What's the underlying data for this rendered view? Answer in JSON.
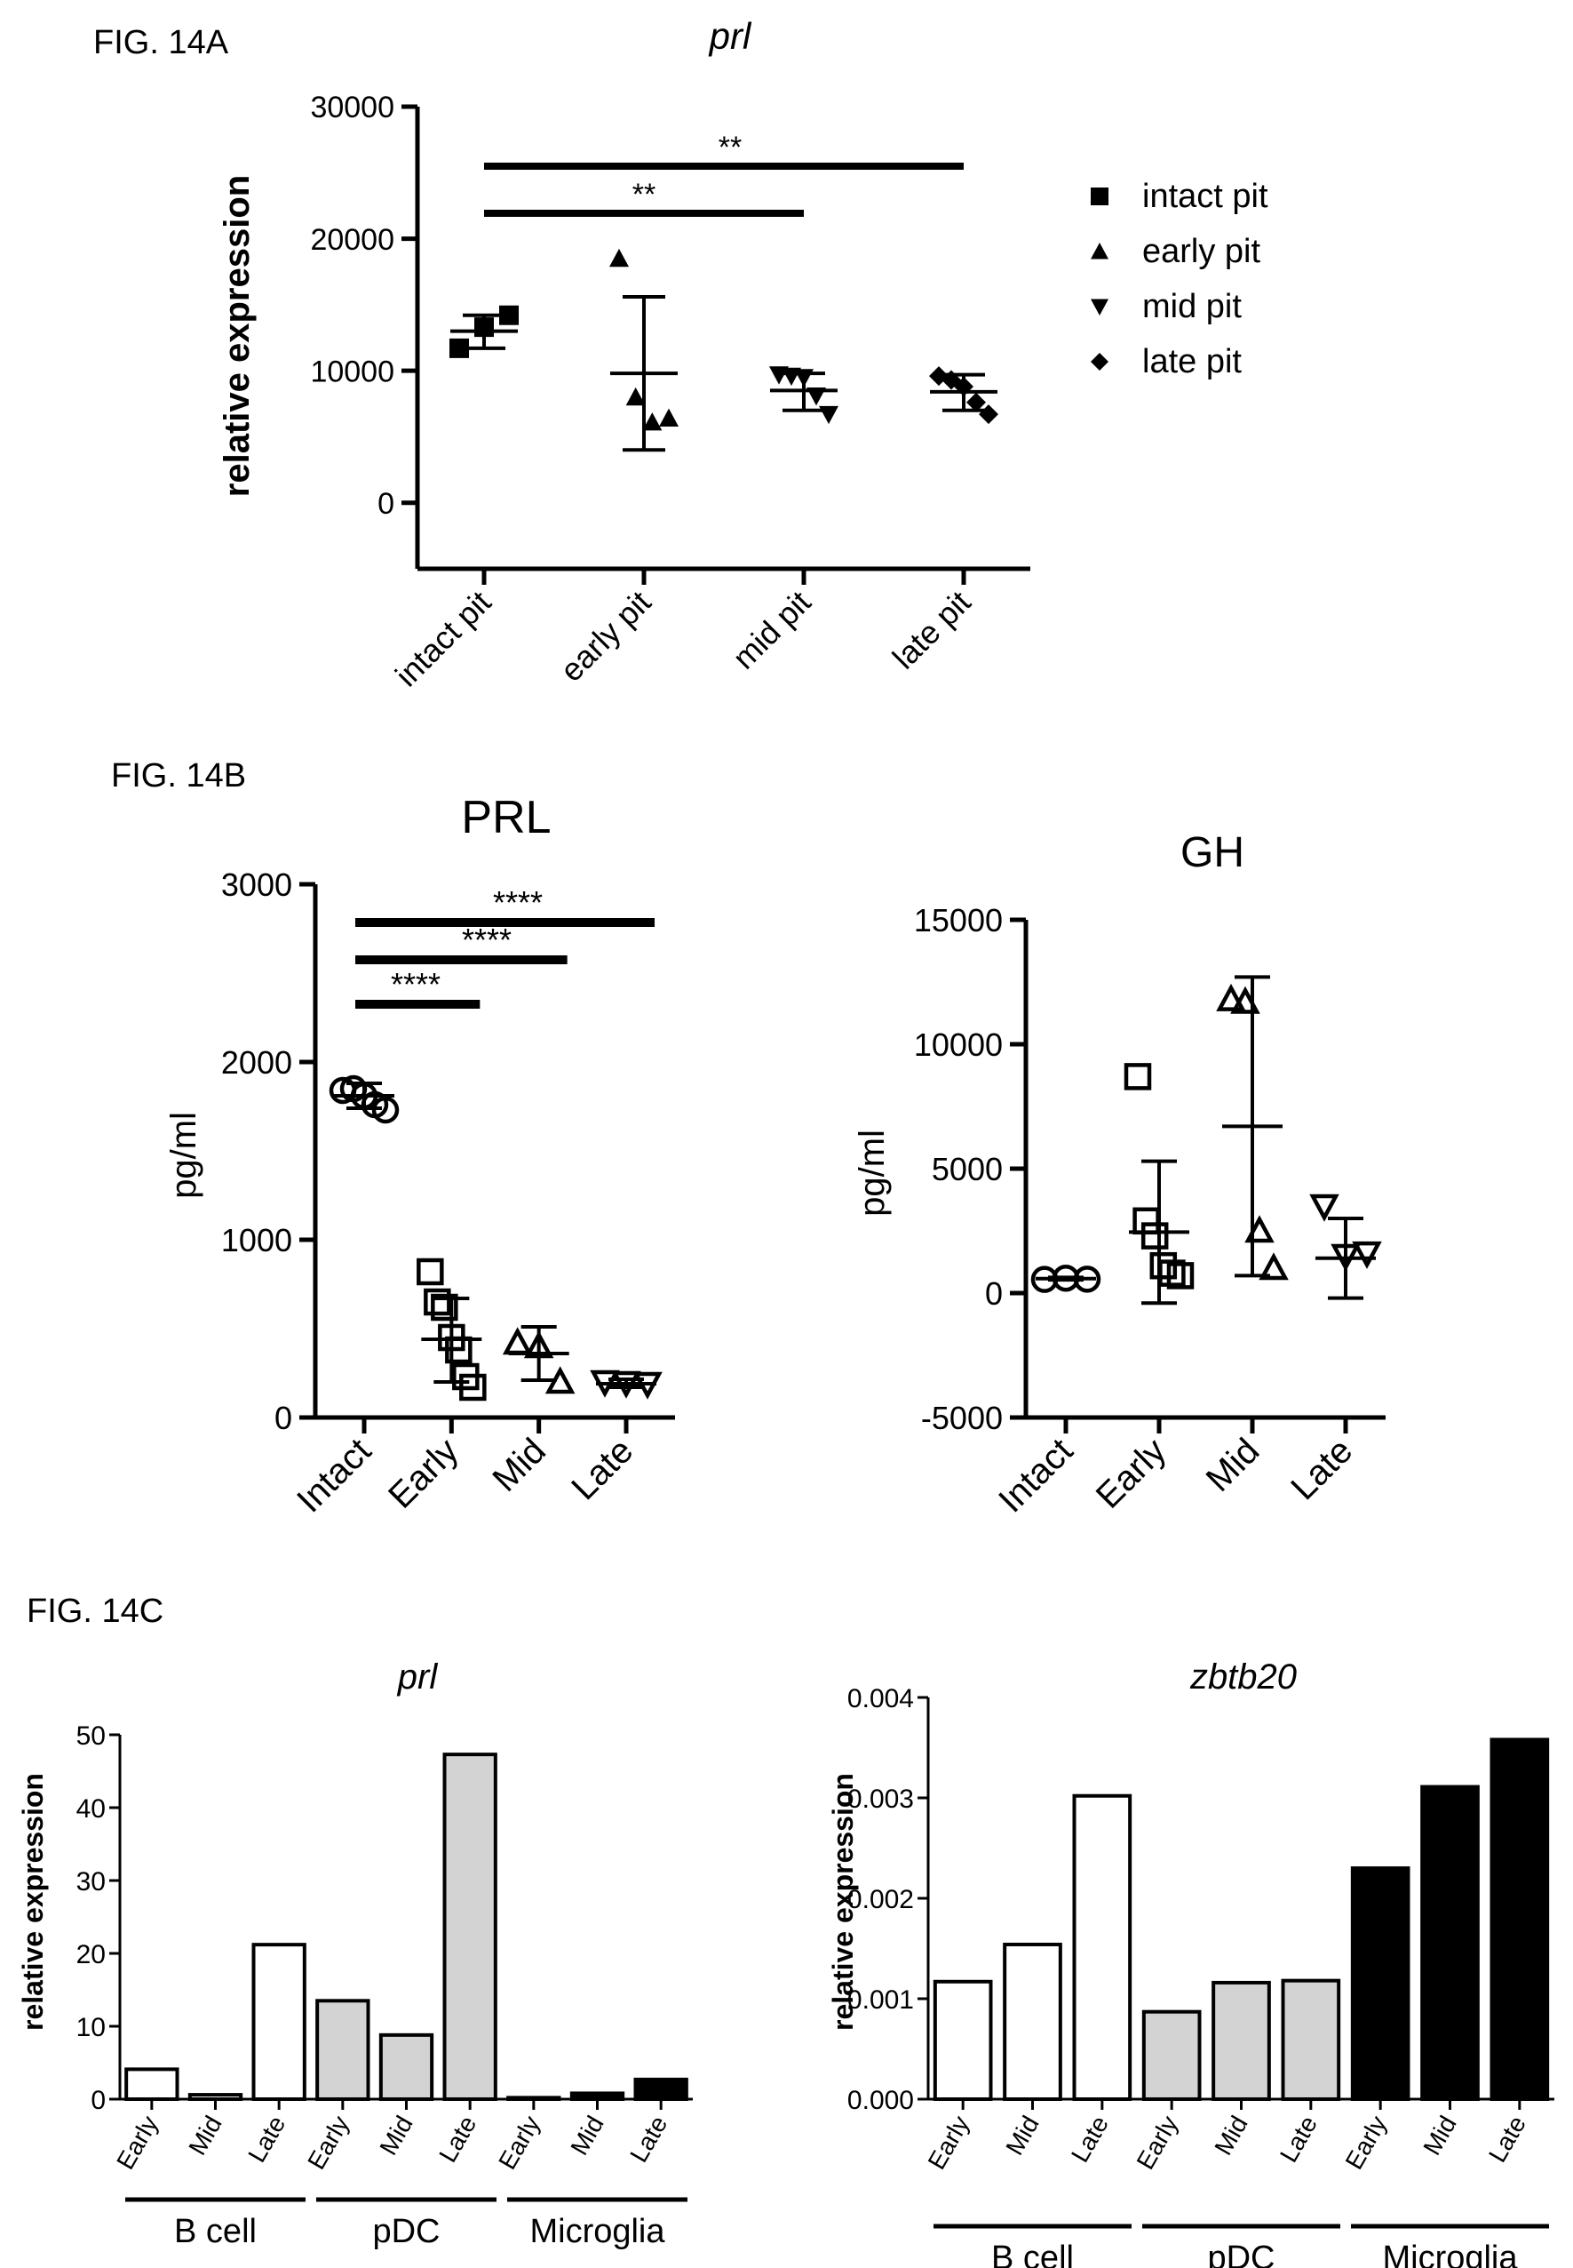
{
  "figure_labels": {
    "a": "FIG. 14A",
    "b": "FIG. 14B",
    "c": "FIG. 14C"
  },
  "chart_data": [
    {
      "id": "fig14a",
      "type": "scatter",
      "title": "prl",
      "ylabel": "relative expression",
      "ylim": [
        -5000,
        30000
      ],
      "yticks": [
        "0",
        "10000",
        "20000",
        "30000"
      ],
      "categories": [
        "intact pit",
        "early pit",
        "mid pit",
        "late pit"
      ],
      "legend": {
        "position": "right",
        "entries": [
          {
            "label": "intact pit",
            "marker": "square"
          },
          {
            "label": "early pit",
            "marker": "triangle-up"
          },
          {
            "label": "mid pit",
            "marker": "triangle-down"
          },
          {
            "label": "late pit",
            "marker": "diamond"
          }
        ]
      },
      "series": [
        {
          "name": "intact pit",
          "marker": "square",
          "points": [
            11700,
            13300,
            14200
          ],
          "mean": 13000,
          "sd_low": 11700,
          "sd_high": 14200
        },
        {
          "name": "early pit",
          "marker": "triangle-up",
          "points": [
            18500,
            8000,
            6100,
            6400
          ],
          "mean": 9800,
          "sd_low": 4000,
          "sd_high": 15600
        },
        {
          "name": "mid pit",
          "marker": "triangle-down",
          "points": [
            9700,
            9600,
            9500,
            8100,
            6700
          ],
          "mean": 8500,
          "sd_low": 7000,
          "sd_high": 9800
        },
        {
          "name": "late pit",
          "marker": "diamond",
          "points": [
            9600,
            9300,
            8800,
            7600,
            6700
          ],
          "mean": 8400,
          "sd_low": 7000,
          "sd_high": 9700
        }
      ],
      "significance": [
        {
          "from": 0,
          "to": 2,
          "label": "**"
        },
        {
          "from": 0,
          "to": 3,
          "label": "**"
        }
      ]
    },
    {
      "id": "fig14b-prl",
      "type": "scatter",
      "title": "PRL",
      "ylabel": "pg/ml",
      "ylim": [
        0,
        3000
      ],
      "yticks": [
        "0",
        "1000",
        "2000",
        "3000"
      ],
      "categories": [
        "Intact",
        "Early",
        "Mid",
        "Late"
      ],
      "series": [
        {
          "name": "Intact",
          "marker": "circle-open",
          "points": [
            1840,
            1850,
            1810,
            1760,
            1730
          ],
          "mean": 1810,
          "sd_low": 1740,
          "sd_high": 1880
        },
        {
          "name": "Early",
          "marker": "square-open",
          "points": [
            820,
            650,
            620,
            450,
            380,
            230,
            170
          ],
          "mean": 440,
          "sd_low": 200,
          "sd_high": 670
        },
        {
          "name": "Mid",
          "marker": "triangle-up-open",
          "points": [
            420,
            400,
            200
          ],
          "mean": 360,
          "sd_low": 210,
          "sd_high": 510
        },
        {
          "name": "Late",
          "marker": "triangle-down-open",
          "points": [
            200,
            195,
            190
          ],
          "mean": 190,
          "sd_low": 170,
          "sd_high": 215
        }
      ],
      "significance": [
        {
          "from": 0,
          "to": 1,
          "label": "****"
        },
        {
          "from": 0,
          "to": 2,
          "label": "****"
        },
        {
          "from": 0,
          "to": 3,
          "label": "****"
        }
      ]
    },
    {
      "id": "fig14b-gh",
      "type": "scatter",
      "title": "GH",
      "ylabel": "pg/ml",
      "ylim": [
        -5000,
        15000
      ],
      "yticks": [
        "-5000",
        "0",
        "5000",
        "10000",
        "15000"
      ],
      "categories": [
        "Intact",
        "Early",
        "Mid",
        "Late"
      ],
      "series": [
        {
          "name": "Intact",
          "marker": "circle-open",
          "points": [
            550,
            600,
            560
          ],
          "mean": 580,
          "sd_low": 530,
          "sd_high": 630
        },
        {
          "name": "Early",
          "marker": "square-open",
          "points": [
            8700,
            2900,
            2300,
            1100,
            800,
            700
          ],
          "mean": 2450,
          "sd_low": -400,
          "sd_high": 5300
        },
        {
          "name": "Mid",
          "marker": "triangle-up-open",
          "points": [
            11800,
            11700,
            2500,
            1000
          ],
          "mean": 6700,
          "sd_low": 700,
          "sd_high": 12700
        },
        {
          "name": "Late",
          "marker": "triangle-down-open",
          "points": [
            3500,
            1500,
            1600
          ],
          "mean": 1400,
          "sd_low": -200,
          "sd_high": 3000
        }
      ]
    },
    {
      "id": "fig14c-prl",
      "type": "bar",
      "title": "prl",
      "ylabel": "relative expression",
      "ylim": [
        0,
        50
      ],
      "yticks": [
        "0",
        "10",
        "20",
        "30",
        "40",
        "50"
      ],
      "categories": [
        "Early",
        "Mid",
        "Late",
        "Early",
        "Mid",
        "Late",
        "Early",
        "Mid",
        "Late"
      ],
      "groups": [
        {
          "label": "B cell",
          "fill": "#ffffff"
        },
        {
          "label": "pDC",
          "fill": "#d3d3d3"
        },
        {
          "label": "Microglia",
          "fill": "#000000"
        }
      ],
      "values": [
        4.1,
        0.6,
        21.2,
        13.5,
        8.8,
        47.3,
        0.2,
        0.8,
        2.7
      ]
    },
    {
      "id": "fig14c-zbtb20",
      "type": "bar",
      "title": "zbtb20",
      "ylabel": "relative expression",
      "ylim": [
        0,
        0.004
      ],
      "yticks": [
        "0.000",
        "0.001",
        "0.002",
        "0.003",
        "0.004"
      ],
      "categories": [
        "Early",
        "Mid",
        "Late",
        "Early",
        "Mid",
        "Late",
        "Early",
        "Mid",
        "Late"
      ],
      "groups": [
        {
          "label": "B cell",
          "fill": "#ffffff"
        },
        {
          "label": "pDC",
          "fill": "#d3d3d3"
        },
        {
          "label": "Microglia",
          "fill": "#000000"
        }
      ],
      "values": [
        0.00117,
        0.00154,
        0.00302,
        0.00087,
        0.00116,
        0.00118,
        0.0023,
        0.00311,
        0.00358
      ]
    }
  ]
}
